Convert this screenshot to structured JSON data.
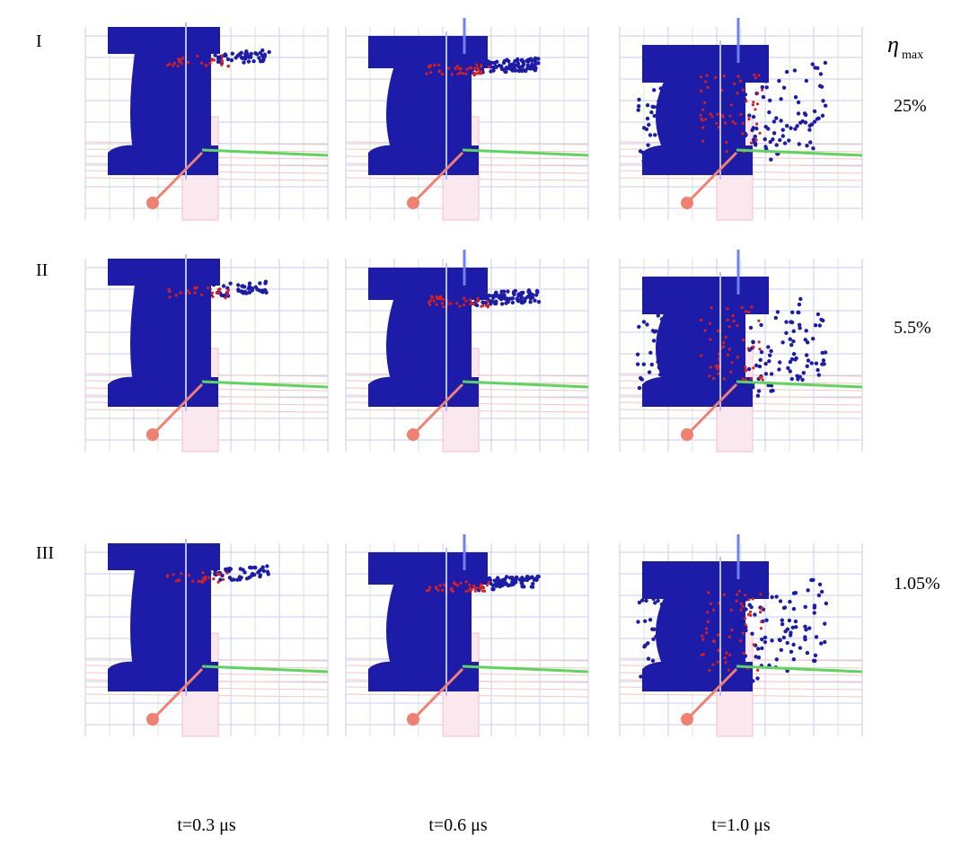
{
  "figure": {
    "rows": [
      {
        "label": "I",
        "eta": "25%"
      },
      {
        "label": "II",
        "eta": "5.5%"
      },
      {
        "label": "III",
        "eta": "1.05%"
      }
    ],
    "eta_header": {
      "symbol": "η",
      "subscript": "max"
    },
    "columns": [
      "t=0.3 μs",
      "t=0.6 μs",
      "t=1.0 μs"
    ]
  }
}
